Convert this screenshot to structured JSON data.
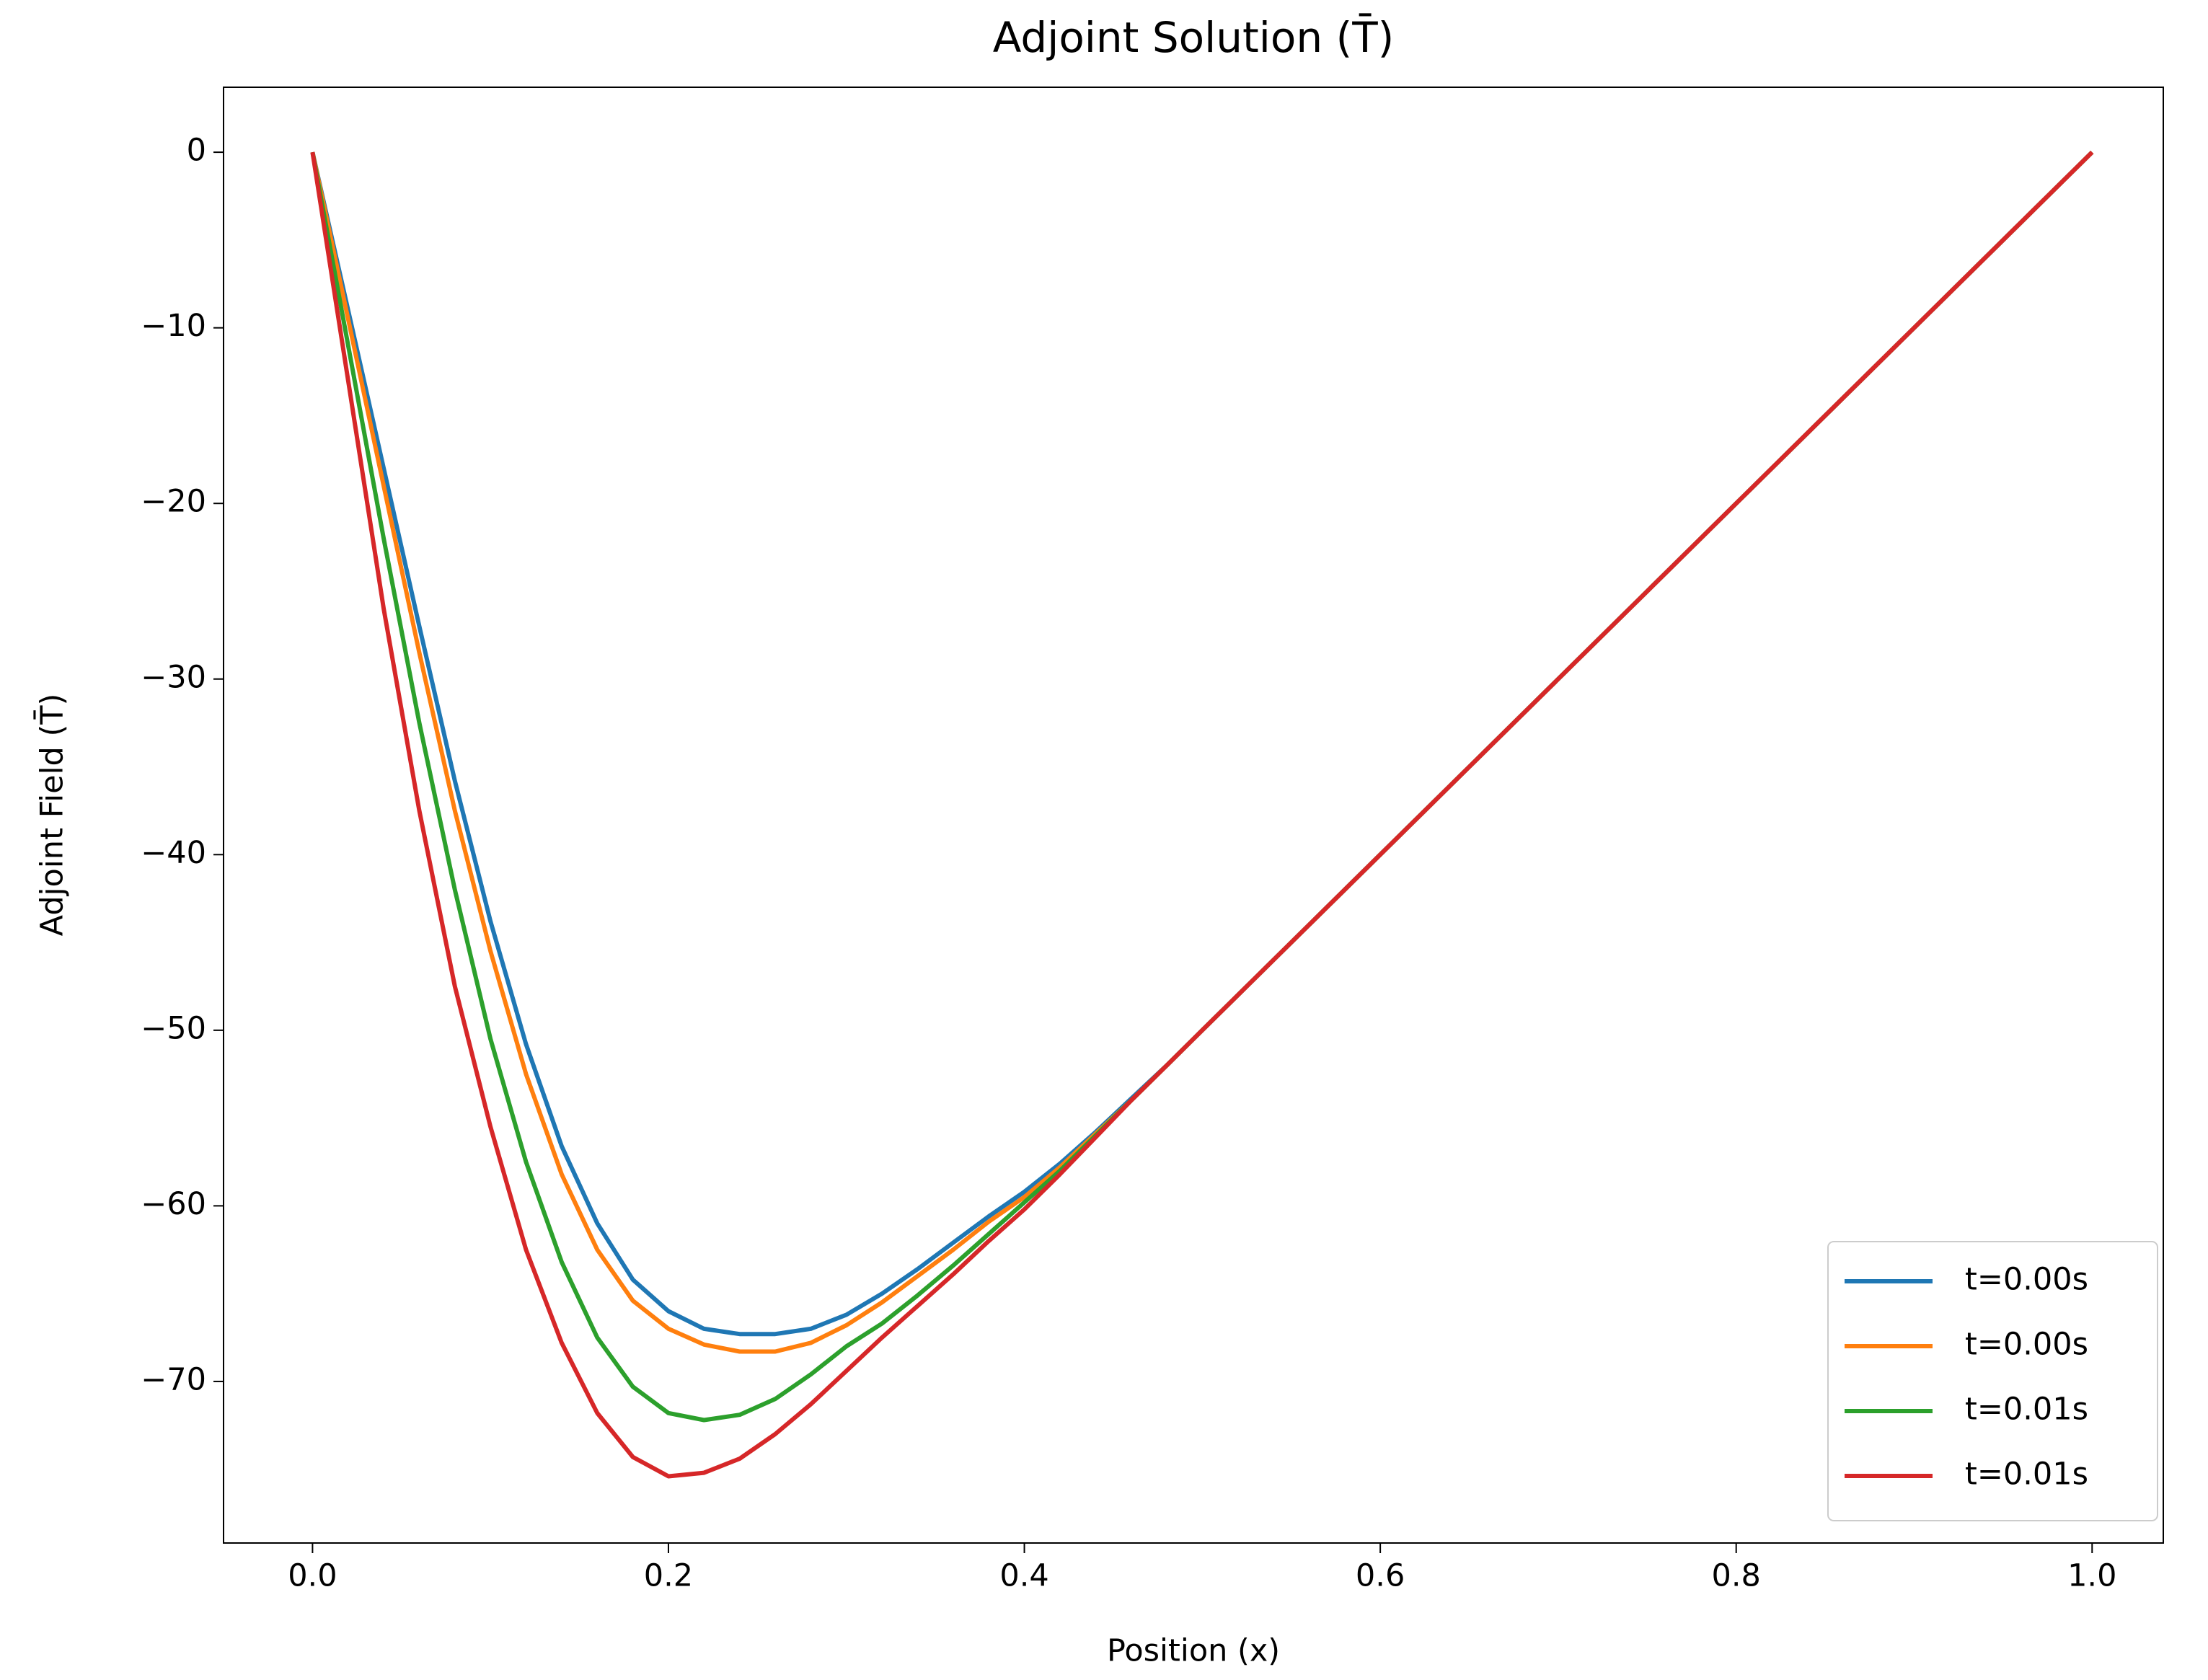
{
  "chart_data": {
    "type": "line",
    "title": "Adjoint Solution (T̄)",
    "xlabel": "Position (x)",
    "ylabel": "Adjoint Field (T̄)",
    "x": [
      0,
      0.02,
      0.04,
      0.06,
      0.08,
      0.1,
      0.12,
      0.14,
      0.16,
      0.18,
      0.2,
      0.22,
      0.24,
      0.26,
      0.28,
      0.3,
      0.32,
      0.34,
      0.36,
      0.38,
      0.4,
      0.42,
      0.44,
      0.46,
      0.48,
      0.5,
      1.0
    ],
    "series": [
      {
        "name": "t=0.00s",
        "color": "#1f77b4",
        "values": [
          0,
          -9,
          -18,
          -27,
          -35.8,
          -43.8,
          -50.8,
          -56.6,
          -61,
          -64.2,
          -66,
          -67,
          -67.3,
          -67.3,
          -67,
          -66.2,
          -65,
          -63.6,
          -62.1,
          -60.6,
          -59.2,
          -57.6,
          -55.8,
          -53.9,
          -52,
          -50,
          0
        ]
      },
      {
        "name": "t=0.00s",
        "color": "#ff7f0e",
        "values": [
          0,
          -9.5,
          -19,
          -28.5,
          -37.5,
          -45.5,
          -52.5,
          -58.2,
          -62.5,
          -65.4,
          -67,
          -67.9,
          -68.3,
          -68.3,
          -67.8,
          -66.8,
          -65.5,
          -64,
          -62.5,
          -60.9,
          -59.5,
          -57.8,
          -55.9,
          -54,
          -52,
          -50,
          0
        ]
      },
      {
        "name": "t=0.01s",
        "color": "#2ca02c",
        "values": [
          0,
          -11,
          -22,
          -32.5,
          -42,
          -50.5,
          -57.5,
          -63.2,
          -67.5,
          -70.3,
          -71.8,
          -72.2,
          -71.9,
          -71,
          -69.6,
          -68,
          -66.7,
          -65.1,
          -63.4,
          -61.6,
          -59.8,
          -58,
          -56,
          -54,
          -52,
          -50,
          0
        ]
      },
      {
        "name": "t=0.01s",
        "color": "#d62728",
        "values": [
          0,
          -13,
          -26,
          -37.5,
          -47.5,
          -55.5,
          -62.5,
          -67.8,
          -71.8,
          -74.3,
          -75.4,
          -75.2,
          -74.4,
          -73,
          -71.3,
          -69.4,
          -67.5,
          -65.7,
          -63.9,
          -62,
          -60.2,
          -58.2,
          -56.1,
          -54,
          -52,
          -50,
          0
        ]
      }
    ],
    "xlim": [
      -0.05,
      1.04
    ],
    "ylim": [
      -79.2,
      3.7
    ],
    "xticks": [
      {
        "value": 0,
        "label": "0.0"
      },
      0.2,
      0.4,
      0.6,
      0.8,
      {
        "value": 1,
        "label": "1.0"
      }
    ],
    "yticks": [
      0,
      {
        "value": -10,
        "label": "−10"
      },
      {
        "value": -20,
        "label": "−20"
      },
      {
        "value": -30,
        "label": "−30"
      },
      {
        "value": -40,
        "label": "−40"
      },
      {
        "value": -50,
        "label": "−50"
      },
      {
        "value": -60,
        "label": "−60"
      },
      {
        "value": -70,
        "label": "−70"
      }
    ],
    "grid": false,
    "legend": "lower right"
  }
}
